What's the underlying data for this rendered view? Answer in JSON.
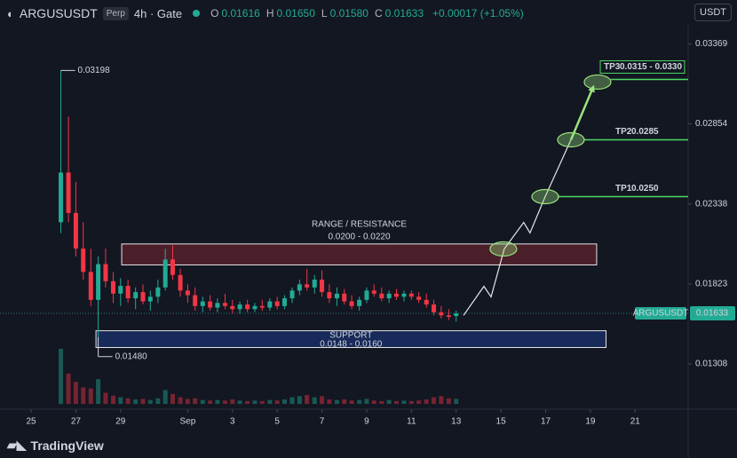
{
  "header": {
    "symbol": "ARGUSUSDT",
    "badge": "Perp",
    "interval": "4h · Gate",
    "ohlc": [
      {
        "name": "O",
        "text": "0.01616"
      },
      {
        "name": "H",
        "text": "0.01650"
      },
      {
        "name": "L",
        "text": "0.01580"
      },
      {
        "name": "C",
        "text": "0.01633"
      }
    ],
    "change": "+0.00017 (+1.05%)",
    "currency": "USDT"
  },
  "chart_data": {
    "type": "candlestick",
    "up_color": "#22ab94",
    "down_color": "#f23645",
    "x": [
      1.33,
      1.67,
      2,
      2.33,
      2.67,
      3,
      3.33,
      3.67,
      4,
      4.33,
      4.67,
      5,
      5.33,
      5.67,
      6,
      6.33,
      6.67,
      7,
      7.33,
      7.67,
      8,
      8.33,
      8.67,
      9,
      9.33,
      9.67,
      10,
      10.33,
      10.67,
      11,
      11.33,
      11.67,
      12,
      12.33,
      12.67,
      13,
      13.33,
      13.67,
      14,
      14.33,
      14.67,
      15,
      15.33,
      15.67,
      16,
      16.33,
      16.67,
      17,
      17.33,
      17.67,
      18,
      18.33,
      18.67,
      19
    ],
    "open": [
      0.0222,
      0.0254,
      0.0228,
      0.0205,
      0.019,
      0.0172,
      0.0195,
      0.0184,
      0.0176,
      0.0181,
      0.0173,
      0.0177,
      0.0171,
      0.0174,
      0.018,
      0.0198,
      0.0188,
      0.0178,
      0.0175,
      0.0168,
      0.0171,
      0.0167,
      0.017,
      0.0168,
      0.0166,
      0.0169,
      0.0166,
      0.0168,
      0.0167,
      0.0171,
      0.0168,
      0.0173,
      0.0178,
      0.0182,
      0.018,
      0.0185,
      0.0177,
      0.0173,
      0.0176,
      0.0171,
      0.0168,
      0.0172,
      0.0178,
      0.0176,
      0.0173,
      0.0176,
      0.0174,
      0.0176,
      0.0174,
      0.0172,
      0.0169,
      0.0164,
      0.0162,
      0.01616
    ],
    "high": [
      0.03198,
      0.029,
      0.0248,
      0.0222,
      0.0205,
      0.02,
      0.0205,
      0.019,
      0.0186,
      0.0185,
      0.018,
      0.0182,
      0.0178,
      0.0185,
      0.0205,
      0.0207,
      0.0192,
      0.0182,
      0.018,
      0.0174,
      0.0175,
      0.0173,
      0.0176,
      0.0172,
      0.0171,
      0.0172,
      0.017,
      0.0172,
      0.0173,
      0.0174,
      0.0175,
      0.018,
      0.0185,
      0.0192,
      0.0188,
      0.0191,
      0.0182,
      0.018,
      0.0179,
      0.0175,
      0.0174,
      0.018,
      0.0182,
      0.018,
      0.0178,
      0.0179,
      0.0178,
      0.0178,
      0.0177,
      0.0176,
      0.0172,
      0.0168,
      0.0166,
      0.0165
    ],
    "low": [
      0.0215,
      0.0222,
      0.02,
      0.0185,
      0.0168,
      0.0148,
      0.018,
      0.017,
      0.0168,
      0.017,
      0.0166,
      0.0169,
      0.0165,
      0.017,
      0.0178,
      0.0185,
      0.0174,
      0.017,
      0.0165,
      0.0164,
      0.0165,
      0.0164,
      0.0166,
      0.0163,
      0.0163,
      0.0164,
      0.0164,
      0.0165,
      0.0165,
      0.0166,
      0.0166,
      0.017,
      0.0175,
      0.0178,
      0.0176,
      0.0174,
      0.017,
      0.0168,
      0.0169,
      0.0166,
      0.0165,
      0.017,
      0.0174,
      0.0171,
      0.017,
      0.0172,
      0.0171,
      0.0172,
      0.017,
      0.0167,
      0.0162,
      0.016,
      0.0159,
      0.0158
    ],
    "close": [
      0.0254,
      0.0228,
      0.0205,
      0.019,
      0.0172,
      0.0195,
      0.0184,
      0.0176,
      0.0181,
      0.0173,
      0.0177,
      0.0171,
      0.0174,
      0.018,
      0.0198,
      0.0188,
      0.0178,
      0.0175,
      0.0168,
      0.0171,
      0.0167,
      0.017,
      0.0168,
      0.0166,
      0.0169,
      0.0166,
      0.0168,
      0.0167,
      0.0171,
      0.0168,
      0.0173,
      0.0178,
      0.0182,
      0.018,
      0.0185,
      0.0177,
      0.0173,
      0.0176,
      0.0171,
      0.0168,
      0.0172,
      0.0178,
      0.0176,
      0.0173,
      0.0176,
      0.0174,
      0.0176,
      0.0174,
      0.0172,
      0.0169,
      0.0164,
      0.0162,
      0.0161,
      0.01633
    ],
    "volume": [
      100,
      55,
      40,
      30,
      28,
      45,
      20,
      15,
      12,
      10,
      8,
      9,
      7,
      10,
      25,
      18,
      12,
      9,
      10,
      7,
      6,
      7,
      6,
      8,
      6,
      5,
      6,
      5,
      7,
      6,
      8,
      12,
      14,
      16,
      12,
      14,
      8,
      7,
      8,
      6,
      7,
      9,
      6,
      5,
      7,
      5,
      6,
      5,
      6,
      8,
      12,
      14,
      10,
      9
    ],
    "xlim": [
      -1.39,
      29.37
    ],
    "ylim": [
      0.0105,
      0.0348
    ],
    "xticks": [
      {
        "value": 0,
        "label": "25"
      },
      {
        "value": 2,
        "label": "27"
      },
      {
        "value": 4,
        "label": "29"
      },
      {
        "value": 7,
        "label": "Sep"
      },
      {
        "value": 9,
        "label": "3"
      },
      {
        "value": 11,
        "label": "5"
      },
      {
        "value": 13,
        "label": "7"
      },
      {
        "value": 15,
        "label": "9"
      },
      {
        "value": 17,
        "label": "11"
      },
      {
        "value": 19,
        "label": "13"
      },
      {
        "value": 21,
        "label": "15"
      },
      {
        "value": 23,
        "label": "17"
      },
      {
        "value": 25,
        "label": "19"
      },
      {
        "value": 27,
        "label": "21"
      }
    ],
    "yticks": [
      0.03369,
      0.02854,
      0.02338,
      0.01823,
      0.01308
    ],
    "grid": false,
    "high_note": {
      "x": 1.33,
      "value": 0.03198
    },
    "low_note": {
      "x": 3,
      "value": 0.0148,
      "label": "0.01480"
    },
    "zones": [
      {
        "label": "RANGE / RESISTANCE",
        "range_text": "0.0200 - 0.0220",
        "xlim": [
          4.05,
          25.28
        ],
        "ylim": [
          0.01945,
          0.0208
        ],
        "color": "#f23645",
        "text_position": "above"
      },
      {
        "label": "SUPPORT",
        "range_text": "0.0148 - 0.0160",
        "xlim": [
          2.9,
          25.7
        ],
        "ylim": [
          0.01413,
          0.01521
        ],
        "color": "#2962ff",
        "text_position": "inside"
      }
    ],
    "projection": {
      "x": [
        19.33,
        20.24,
        20.56,
        21.15,
        22.02,
        22.3,
        22.98,
        24.13,
        25.12
      ],
      "y": [
        0.0162,
        0.01807,
        0.01739,
        0.02048,
        0.02219,
        0.02151,
        0.02385,
        0.02751,
        0.03089
      ]
    },
    "markers": {
      "x": [
        21.11,
        22.98,
        24.13,
        25.32
      ],
      "y": [
        0.02048,
        0.02385,
        0.02751,
        0.03123
      ],
      "color": "#9be37d"
    },
    "targets": [
      {
        "name": "TP1",
        "price_text": "0.0250",
        "x": 23.53,
        "y": 0.02385,
        "boxed": false
      },
      {
        "name": "TP2",
        "price_text": "0.0285",
        "x": 24.72,
        "y": 0.02751,
        "boxed": false
      },
      {
        "name": "TP3",
        "price_text": "0.0315 - 0.0330",
        "x": 25.91,
        "y": 0.0314,
        "boxed": true
      }
    ],
    "target_color": "#4cd964",
    "last_price": {
      "value": 0.01633,
      "symbol": "ARGUSUSDT",
      "label": "0.01633"
    }
  },
  "footer": {
    "brand": "TradingView"
  }
}
